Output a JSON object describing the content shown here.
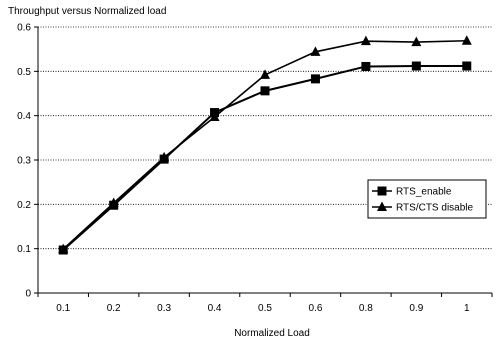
{
  "chart_data": {
    "type": "line",
    "title": "Throughput versus Normalized load",
    "xlabel": "Normalized Load",
    "ylabel": "",
    "categories": [
      "0.1",
      "0.2",
      "0.3",
      "0.4",
      "0.5",
      "0.6",
      "0.8",
      "0.9",
      "1"
    ],
    "ylim": [
      0,
      0.6
    ],
    "yticks": [
      "0",
      "0.1",
      "0.2",
      "0.3",
      "0.4",
      "0.5",
      "0.6"
    ],
    "grid": "horizontal dotted",
    "legend_position": "right",
    "series": [
      {
        "name": "RTS_enable",
        "marker": "square",
        "values": [
          0.097,
          0.198,
          0.302,
          0.407,
          0.456,
          0.483,
          0.511,
          0.512,
          0.512
        ]
      },
      {
        "name": "RTS/CTS disable",
        "marker": "triangle",
        "values": [
          0.099,
          0.203,
          0.306,
          0.397,
          0.492,
          0.544,
          0.568,
          0.566,
          0.569
        ]
      }
    ]
  }
}
